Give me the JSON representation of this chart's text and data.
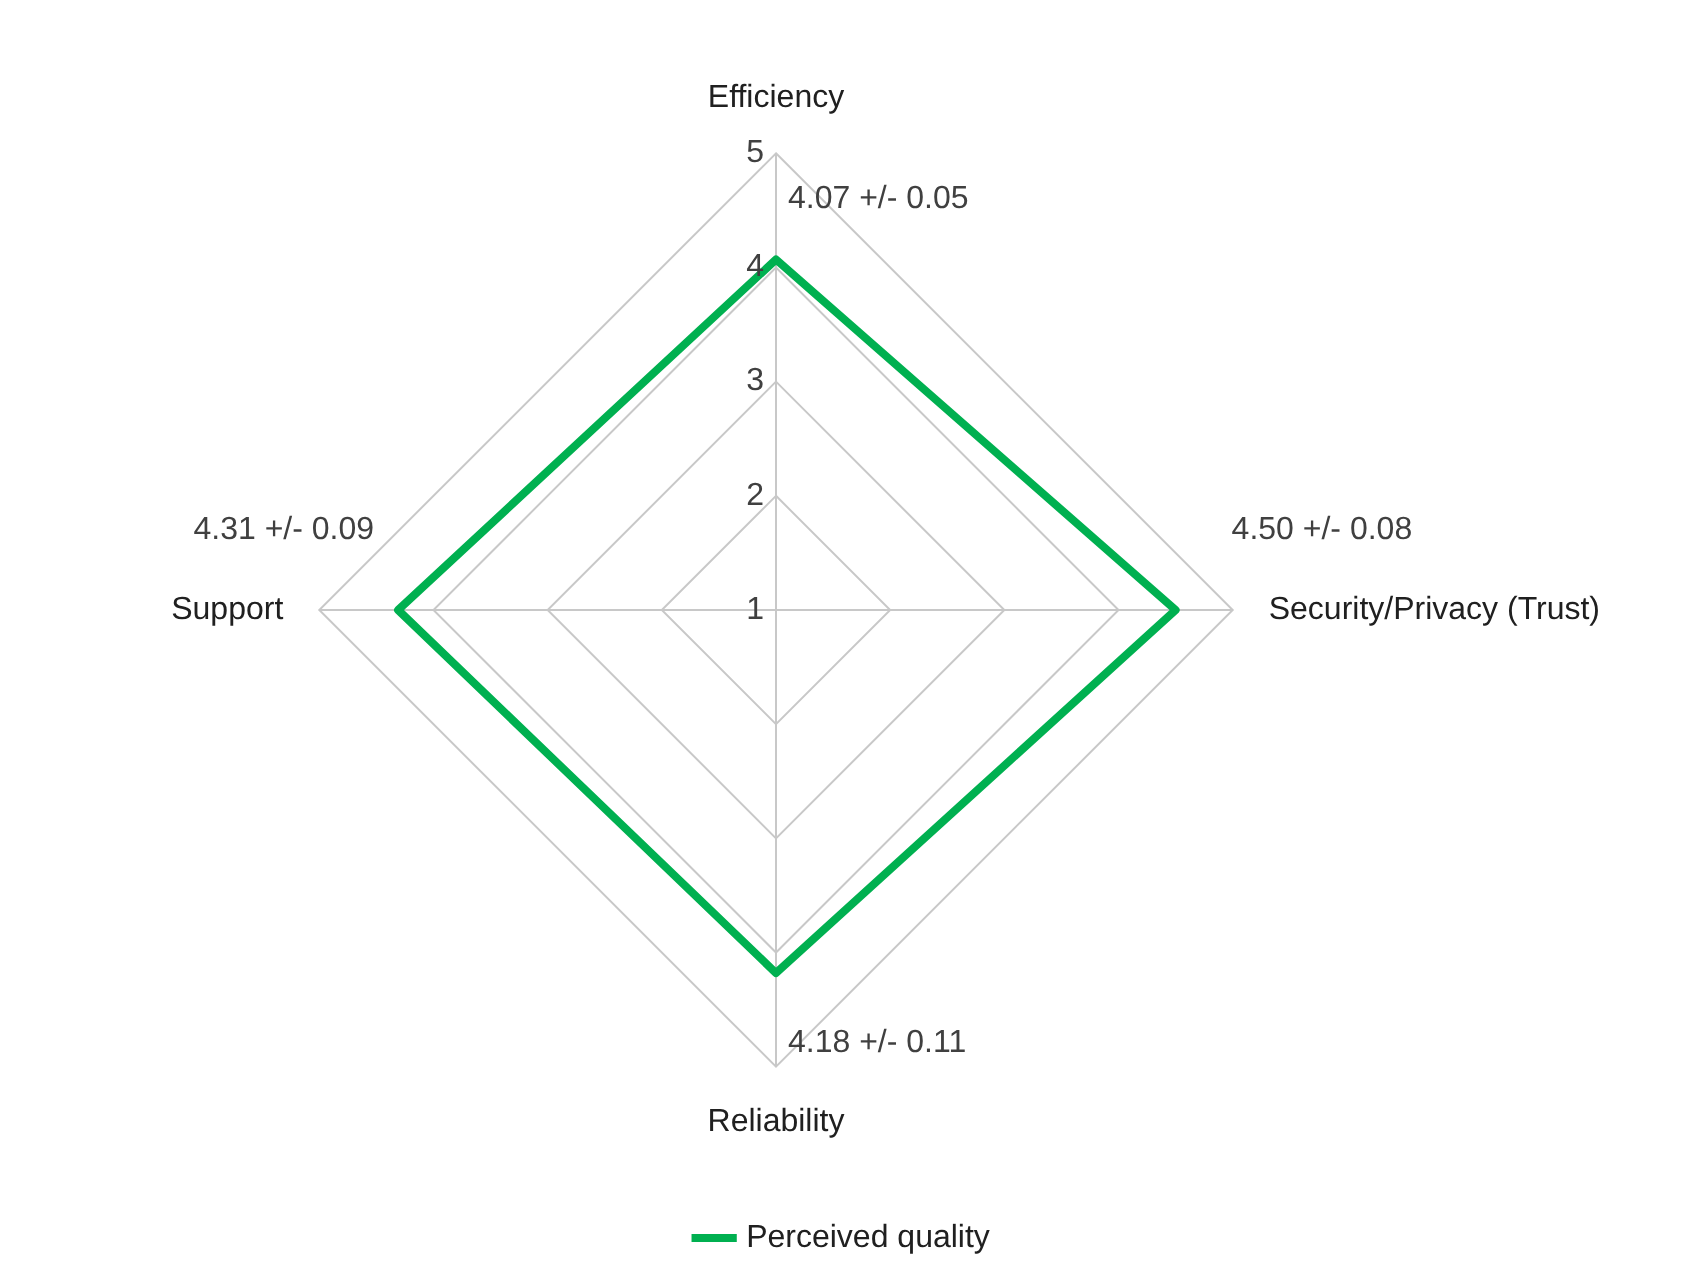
{
  "chart_data": {
    "type": "radar",
    "categories": [
      "Efficiency",
      "Security/Privacy (Trust)",
      "Reliability",
      "Support"
    ],
    "series": [
      {
        "name": "Perceived quality",
        "color": "#00b050",
        "values": [
          4.07,
          4.5,
          4.18,
          4.31
        ],
        "value_labels": [
          "4.07 +/- 0.05",
          "4.50 +/- 0.08",
          "4.18 +/- 0.11",
          "4.31 +/- 0.09"
        ]
      }
    ],
    "ylim": [
      1,
      5
    ],
    "yticks": [
      1,
      2,
      3,
      4,
      5
    ],
    "grid": true,
    "legend": "bottom",
    "marker": "none"
  }
}
